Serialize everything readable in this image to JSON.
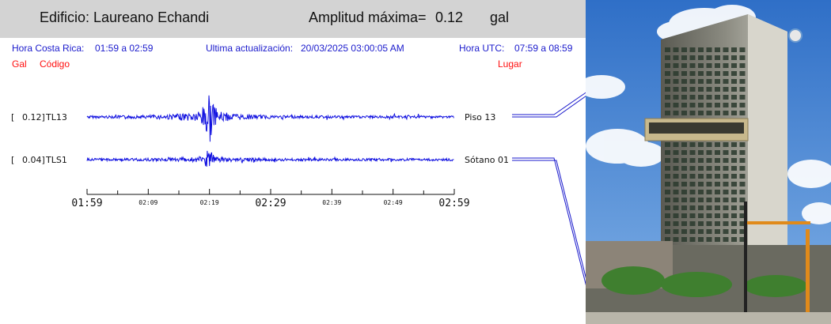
{
  "header": {
    "building_label": "Edificio:",
    "building_name": "Laureano Echandi",
    "amplitude_label": "Amplitud máxima=",
    "amplitude_value": "0.12",
    "amplitude_unit": "gal"
  },
  "info": {
    "local_label": "Hora Costa Rica:",
    "local_range": "01:59 a 02:59",
    "update_label": "Ultima actualización:",
    "update_value": "20/03/2025 03:00:05 AM",
    "utc_label": "Hora UTC:",
    "utc_range": "07:59 a 08:59"
  },
  "legend": {
    "gal": "Gal",
    "code": "Código",
    "place": "Lugar"
  },
  "channels": [
    {
      "bracket_open": "[",
      "amp": "0.12]",
      "code": "TL13",
      "location": "Piso 13",
      "peak_minute": 19.8,
      "peak_amplitude": 0.12
    },
    {
      "bracket_open": "[",
      "amp": "0.04]",
      "code": "TLS1",
      "location": "Sótano 01",
      "peak_minute": 19.8,
      "peak_amplitude": 0.04
    }
  ],
  "time_axis": {
    "major_labels": [
      "01:59",
      "02:29",
      "02:59"
    ],
    "minor_labels": [
      "02:09",
      "02:19",
      "02:39",
      "02:49"
    ],
    "span_minutes": 60
  },
  "colors": {
    "trace": "#1010e0",
    "info_text": "#1a1acc",
    "legend_red": "#ff1010",
    "header_bg": "#d3d3d3"
  },
  "photo": {
    "subject": "building-photo"
  }
}
